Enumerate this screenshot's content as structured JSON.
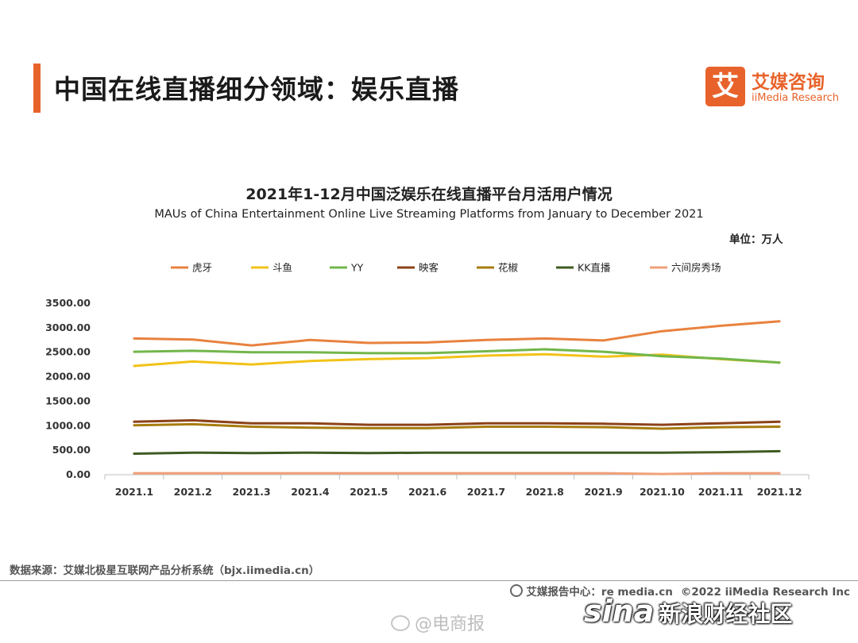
{
  "header": {
    "title": "中国在线直播细分领域：娱乐直播",
    "logo_mark": "艾",
    "logo_cn": "艾媒咨询",
    "logo_en": "iiMedia Research",
    "accent_color": "#e8632b"
  },
  "chart_data": {
    "type": "line",
    "title": "2021年1-12月中国泛娱乐在线直播平台月活用户情况",
    "subtitle": "MAUs of China Entertainment Online Live Streaming Platforms from January to December 2021",
    "unit": "单位：万人",
    "categories": [
      "2021.1",
      "2021.2",
      "2021.3",
      "2021.4",
      "2021.5",
      "2021.6",
      "2021.7",
      "2021.8",
      "2021.9",
      "2021.10",
      "2021.11",
      "2021.12"
    ],
    "ylim": [
      0,
      3500
    ],
    "yticks": [
      "0.00",
      "500.00",
      "1000.00",
      "1500.00",
      "2000.00",
      "2500.00",
      "3000.00",
      "3500.00"
    ],
    "grid": false,
    "legend_position": "top",
    "series": [
      {
        "name": "虎牙",
        "color": "#e8823f",
        "values": [
          2780,
          2760,
          2640,
          2750,
          2690,
          2700,
          2750,
          2780,
          2740,
          2930,
          3040,
          3130
        ]
      },
      {
        "name": "斗鱼",
        "color": "#f2c218",
        "values": [
          2220,
          2310,
          2250,
          2320,
          2360,
          2380,
          2430,
          2460,
          2410,
          2450,
          2360,
          2290
        ]
      },
      {
        "name": "YY",
        "color": "#72b64b",
        "values": [
          2510,
          2530,
          2500,
          2500,
          2480,
          2480,
          2520,
          2560,
          2510,
          2420,
          2370,
          2290
        ]
      },
      {
        "name": "映客",
        "color": "#8c4218",
        "values": [
          1080,
          1110,
          1050,
          1050,
          1020,
          1020,
          1050,
          1050,
          1040,
          1020,
          1050,
          1080
        ]
      },
      {
        "name": "花椒",
        "color": "#a77c0e",
        "values": [
          1010,
          1030,
          980,
          960,
          950,
          950,
          980,
          980,
          970,
          940,
          970,
          980
        ]
      },
      {
        "name": "KK直播",
        "color": "#3f5b21",
        "values": [
          430,
          450,
          440,
          450,
          440,
          450,
          450,
          450,
          450,
          450,
          460,
          480
        ]
      },
      {
        "name": "六间房秀场",
        "color": "#f0a078",
        "values": [
          30,
          30,
          30,
          30,
          30,
          30,
          30,
          30,
          30,
          15,
          30,
          30
        ]
      }
    ]
  },
  "source": "数据来源：艾媒北极星互联网产品分析系统（bjx.iimedia.cn）",
  "footer": {
    "center_label": "艾媒报告中心：",
    "center_url": "re  media.cn",
    "copyright": "©2022  iiMedia Research  Inc"
  },
  "watermark": {
    "weibo": "@电商报",
    "sina_logo": "sina",
    "sina_cn": "新浪财经社区"
  }
}
